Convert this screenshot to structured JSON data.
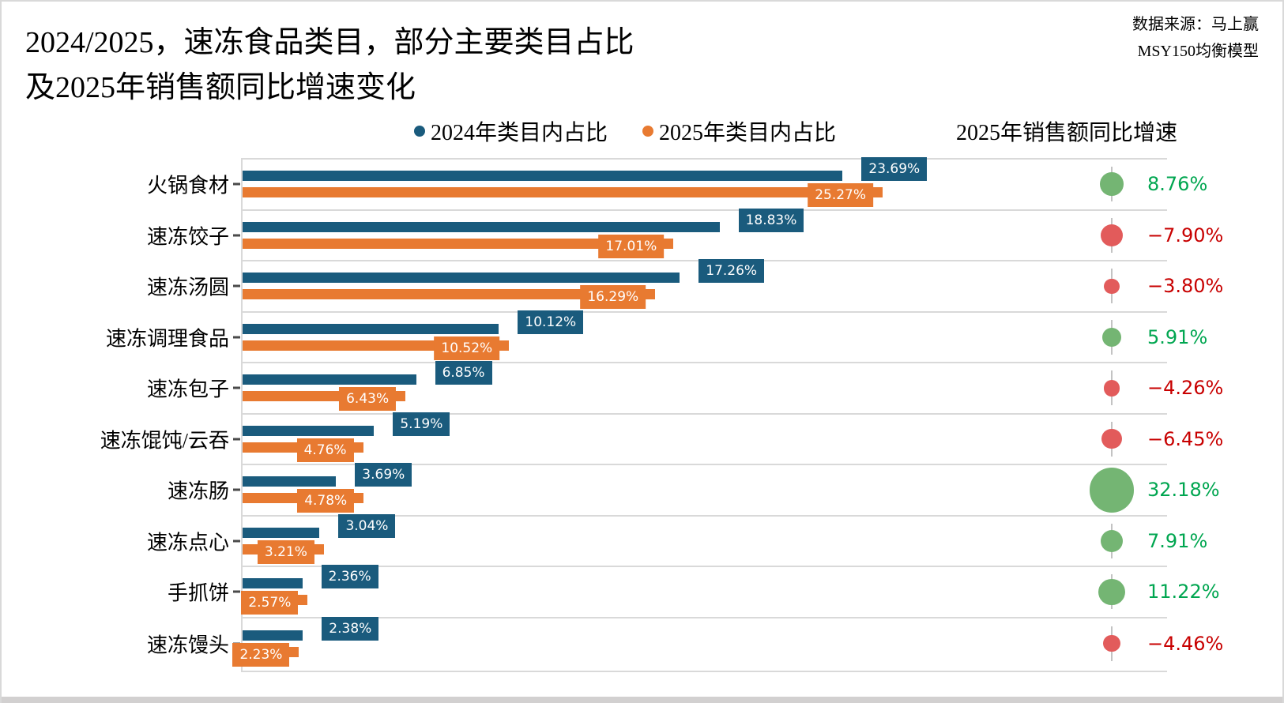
{
  "header": {
    "title_line1": "2024/2025，速冻食品类目，部分主要类目占比",
    "title_line2": "及2025年销售额同比增速变化",
    "source_line1": "数据来源：马上赢",
    "source_line2": "MSY150均衡模型"
  },
  "legend": {
    "series_2024_label": "2024年类目内占比",
    "series_2025_label": "2025年类目内占比",
    "growth_header": "2025年销售额同比增速"
  },
  "colors": {
    "bar_2024": "#1a5b7d",
    "bar_2025": "#e87a31",
    "growth_positive_circle": "#74b573",
    "growth_negative_circle": "#e25b5b",
    "growth_positive_text": "#00a650",
    "growth_negative_text": "#c80000",
    "gridline": "#d9d9d9"
  },
  "chart_data": {
    "type": "bar",
    "orientation": "horizontal",
    "title": "2024/2025，速冻食品类目，部分主要类目占比及2025年销售额同比增速变化",
    "categories": [
      "火锅食材",
      "速冻饺子",
      "速冻汤圆",
      "速冻调理食品",
      "速冻包子",
      "速冻馄饨/云吞",
      "速冻肠",
      "速冻点心",
      "手抓饼",
      "速冻馒头"
    ],
    "series": [
      {
        "name": "2024年类目内占比",
        "values": [
          23.69,
          18.83,
          17.26,
          10.12,
          6.85,
          5.19,
          3.69,
          3.04,
          2.36,
          2.38
        ],
        "labels": [
          "23.69%",
          "18.83%",
          "17.26%",
          "10.12%",
          "6.85%",
          "5.19%",
          "3.69%",
          "3.04%",
          "2.36%",
          "2.38%"
        ]
      },
      {
        "name": "2025年类目内占比",
        "values": [
          25.27,
          17.01,
          16.29,
          10.52,
          6.43,
          4.76,
          4.78,
          3.21,
          2.57,
          2.23
        ],
        "labels": [
          "25.27%",
          "17.01%",
          "16.29%",
          "10.52%",
          "6.43%",
          "4.76%",
          "4.78%",
          "3.21%",
          "2.57%",
          "2.23%"
        ]
      }
    ],
    "growth": {
      "name": "2025年销售额同比增速",
      "values": [
        8.76,
        -7.9,
        -3.8,
        5.91,
        -4.26,
        -6.45,
        32.18,
        7.91,
        11.22,
        -4.46
      ],
      "labels": [
        "8.76%",
        "−7.90%",
        "−3.80%",
        "5.91%",
        "−4.26%",
        "−6.45%",
        "32.18%",
        "7.91%",
        "11.22%",
        "−4.46%"
      ]
    },
    "xlim": [
      0,
      36.5
    ],
    "grid": "horizontal-separators-only",
    "legend_position": "top-center",
    "value_labels": "on-bar-end-boxes",
    "growth_marker": "circle-area-proportional-to-value"
  }
}
